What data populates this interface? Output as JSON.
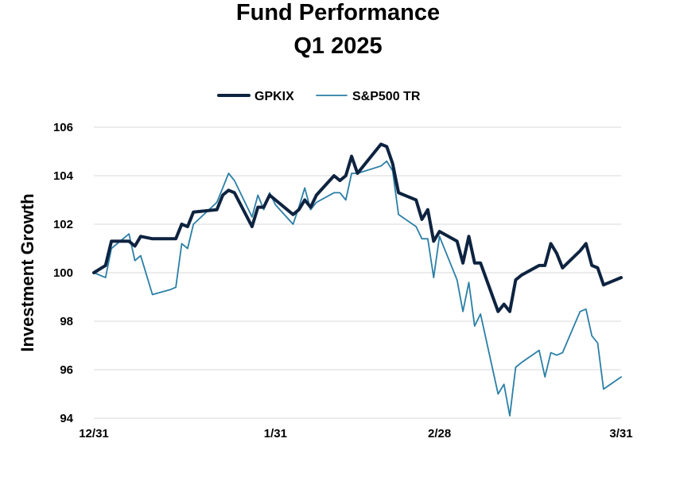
{
  "chart_data": {
    "type": "line",
    "title": "Fund Performance",
    "subtitle": "Q1 2025",
    "xlabel": "",
    "ylabel": "Investment Growth",
    "ylim": [
      94,
      106
    ],
    "yticks": [
      94,
      96,
      98,
      100,
      102,
      104,
      106
    ],
    "xticks": [
      "12/31",
      "1/31",
      "2/28",
      "3/31"
    ],
    "grid": "horizontal",
    "legend": "top-center",
    "series": [
      {
        "name": "GPKIX",
        "color": "#0d2340",
        "points": [
          [
            "2024-12-31",
            100.0
          ],
          [
            "2025-01-02",
            100.3
          ],
          [
            "2025-01-03",
            101.3
          ],
          [
            "2025-01-06",
            101.3
          ],
          [
            "2025-01-07",
            101.1
          ],
          [
            "2025-01-08",
            101.5
          ],
          [
            "2025-01-10",
            101.4
          ],
          [
            "2025-01-13",
            101.4
          ],
          [
            "2025-01-14",
            101.4
          ],
          [
            "2025-01-15",
            102.0
          ],
          [
            "2025-01-16",
            101.9
          ],
          [
            "2025-01-17",
            102.5
          ],
          [
            "2025-01-21",
            102.6
          ],
          [
            "2025-01-22",
            103.2
          ],
          [
            "2025-01-23",
            103.4
          ],
          [
            "2025-01-24",
            103.3
          ],
          [
            "2025-01-27",
            101.9
          ],
          [
            "2025-01-28",
            102.7
          ],
          [
            "2025-01-29",
            102.7
          ],
          [
            "2025-01-30",
            103.2
          ],
          [
            "2025-01-31",
            103.0
          ],
          [
            "2025-02-03",
            102.4
          ],
          [
            "2025-02-04",
            102.6
          ],
          [
            "2025-02-05",
            103.0
          ],
          [
            "2025-02-06",
            102.7
          ],
          [
            "2025-02-07",
            103.2
          ],
          [
            "2025-02-10",
            104.0
          ],
          [
            "2025-02-11",
            103.8
          ],
          [
            "2025-02-12",
            104.0
          ],
          [
            "2025-02-13",
            104.8
          ],
          [
            "2025-02-14",
            104.1
          ],
          [
            "2025-02-18",
            105.3
          ],
          [
            "2025-02-19",
            105.2
          ],
          [
            "2025-02-20",
            104.5
          ],
          [
            "2025-02-21",
            103.3
          ],
          [
            "2025-02-24",
            103.0
          ],
          [
            "2025-02-25",
            102.2
          ],
          [
            "2025-02-26",
            102.6
          ],
          [
            "2025-02-27",
            101.3
          ],
          [
            "2025-02-28",
            101.7
          ],
          [
            "2025-03-03",
            101.3
          ],
          [
            "2025-03-04",
            100.4
          ],
          [
            "2025-03-05",
            101.5
          ],
          [
            "2025-03-06",
            100.4
          ],
          [
            "2025-03-07",
            100.4
          ],
          [
            "2025-03-10",
            98.4
          ],
          [
            "2025-03-11",
            98.7
          ],
          [
            "2025-03-12",
            98.4
          ],
          [
            "2025-03-13",
            99.7
          ],
          [
            "2025-03-14",
            99.9
          ],
          [
            "2025-03-17",
            100.3
          ],
          [
            "2025-03-18",
            100.3
          ],
          [
            "2025-03-19",
            101.2
          ],
          [
            "2025-03-20",
            100.8
          ],
          [
            "2025-03-21",
            100.2
          ],
          [
            "2025-03-24",
            100.9
          ],
          [
            "2025-03-25",
            101.2
          ],
          [
            "2025-03-26",
            100.3
          ],
          [
            "2025-03-27",
            100.2
          ],
          [
            "2025-03-28",
            99.5
          ],
          [
            "2025-03-31",
            99.8
          ]
        ]
      },
      {
        "name": "S&P500 TR",
        "color": "#2b7fa6",
        "points": [
          [
            "2024-12-31",
            100.0
          ],
          [
            "2025-01-02",
            99.8
          ],
          [
            "2025-01-03",
            101.0
          ],
          [
            "2025-01-06",
            101.6
          ],
          [
            "2025-01-07",
            100.5
          ],
          [
            "2025-01-08",
            100.7
          ],
          [
            "2025-01-10",
            99.1
          ],
          [
            "2025-01-13",
            99.3
          ],
          [
            "2025-01-14",
            99.4
          ],
          [
            "2025-01-15",
            101.2
          ],
          [
            "2025-01-16",
            101.0
          ],
          [
            "2025-01-17",
            102.0
          ],
          [
            "2025-01-21",
            102.9
          ],
          [
            "2025-01-22",
            103.5
          ],
          [
            "2025-01-23",
            104.1
          ],
          [
            "2025-01-24",
            103.8
          ],
          [
            "2025-01-27",
            102.3
          ],
          [
            "2025-01-28",
            103.2
          ],
          [
            "2025-01-29",
            102.6
          ],
          [
            "2025-01-30",
            103.3
          ],
          [
            "2025-01-31",
            102.8
          ],
          [
            "2025-02-03",
            102.0
          ],
          [
            "2025-02-04",
            102.7
          ],
          [
            "2025-02-05",
            103.5
          ],
          [
            "2025-02-06",
            102.6
          ],
          [
            "2025-02-07",
            102.9
          ],
          [
            "2025-02-10",
            103.3
          ],
          [
            "2025-02-11",
            103.3
          ],
          [
            "2025-02-12",
            103.0
          ],
          [
            "2025-02-13",
            104.1
          ],
          [
            "2025-02-14",
            104.1
          ],
          [
            "2025-02-18",
            104.4
          ],
          [
            "2025-02-19",
            104.6
          ],
          [
            "2025-02-20",
            104.2
          ],
          [
            "2025-02-21",
            102.4
          ],
          [
            "2025-02-24",
            101.9
          ],
          [
            "2025-02-25",
            101.4
          ],
          [
            "2025-02-26",
            101.4
          ],
          [
            "2025-02-27",
            99.8
          ],
          [
            "2025-02-28",
            101.5
          ],
          [
            "2025-03-03",
            99.7
          ],
          [
            "2025-03-04",
            98.4
          ],
          [
            "2025-03-05",
            99.6
          ],
          [
            "2025-03-06",
            97.8
          ],
          [
            "2025-03-07",
            98.3
          ],
          [
            "2025-03-10",
            95.0
          ],
          [
            "2025-03-11",
            95.4
          ],
          [
            "2025-03-12",
            94.1
          ],
          [
            "2025-03-13",
            96.1
          ],
          [
            "2025-03-14",
            96.3
          ],
          [
            "2025-03-17",
            96.8
          ],
          [
            "2025-03-18",
            95.7
          ],
          [
            "2025-03-19",
            96.7
          ],
          [
            "2025-03-20",
            96.6
          ],
          [
            "2025-03-21",
            96.7
          ],
          [
            "2025-03-24",
            98.4
          ],
          [
            "2025-03-25",
            98.5
          ],
          [
            "2025-03-26",
            97.4
          ],
          [
            "2025-03-27",
            97.1
          ],
          [
            "2025-03-28",
            95.2
          ],
          [
            "2025-03-31",
            95.7
          ]
        ]
      }
    ]
  }
}
